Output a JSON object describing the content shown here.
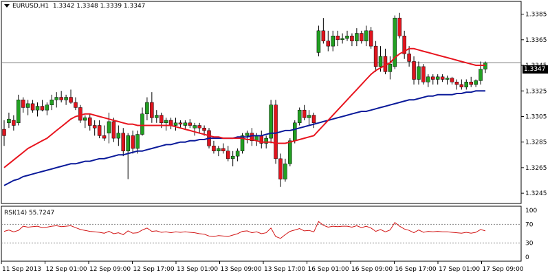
{
  "header": {
    "symbol_label": "EURUSD,H1",
    "ohlc": "1.3342 1.3348 1.3339 1.3347"
  },
  "current_price": "1.3347",
  "rsi": {
    "label": "RSI(14) 55.7247",
    "levels": [
      "100",
      "70",
      "30",
      "0"
    ]
  },
  "colors": {
    "bull": "#22a022",
    "bear": "#e0141e",
    "ma_fast": "#e8141e",
    "ma_slow": "#0a1a9a",
    "rsi_line": "#d21414",
    "grid": "#000000"
  },
  "chart_data": {
    "type": "candlestick",
    "price_axis": {
      "ticks": [
        "1.3385",
        "1.3365",
        "1.3345",
        "1.3325",
        "1.3305",
        "1.3285",
        "1.3265",
        "1.3245"
      ],
      "range": [
        1.3237,
        1.3395
      ]
    },
    "time_axis": {
      "ticks": [
        "11 Sep 2013",
        "12 Sep 01:00",
        "12 Sep 09:00",
        "12 Sep 17:00",
        "13 Sep 01:00",
        "13 Sep 09:00",
        "13 Sep 17:00",
        "16 Sep 01:00",
        "16 Sep 09:00",
        "16 Sep 17:00",
        "17 Sep 01:00",
        "17 Sep 09:00"
      ]
    },
    "candles": [
      [
        1.3295,
        1.3302,
        1.3282,
        1.329
      ],
      [
        1.33,
        1.3308,
        1.3296,
        1.3303
      ],
      [
        1.3302,
        1.3306,
        1.3294,
        1.3298
      ],
      [
        1.33,
        1.3322,
        1.3298,
        1.3318
      ],
      [
        1.3318,
        1.332,
        1.3308,
        1.3312
      ],
      [
        1.3312,
        1.3318,
        1.3306,
        1.3315
      ],
      [
        1.3315,
        1.3318,
        1.3308,
        1.331
      ],
      [
        1.331,
        1.3316,
        1.3305,
        1.3313
      ],
      [
        1.3313,
        1.3318,
        1.3309,
        1.331
      ],
      [
        1.331,
        1.3316,
        1.3306,
        1.3314
      ],
      [
        1.3314,
        1.3322,
        1.331,
        1.3318
      ],
      [
        1.3318,
        1.3324,
        1.3312,
        1.332
      ],
      [
        1.332,
        1.3325,
        1.3316,
        1.3318
      ],
      [
        1.3318,
        1.3322,
        1.3314,
        1.332
      ],
      [
        1.332,
        1.3326,
        1.3315,
        1.3316
      ],
      [
        1.3316,
        1.332,
        1.331,
        1.3312
      ],
      [
        1.3312,
        1.3314,
        1.33,
        1.3302
      ],
      [
        1.3302,
        1.3306,
        1.3296,
        1.3304
      ],
      [
        1.3304,
        1.3307,
        1.3294,
        1.3298
      ],
      [
        1.3298,
        1.3302,
        1.329,
        1.3296
      ],
      [
        1.3298,
        1.3302,
        1.3288,
        1.329
      ],
      [
        1.329,
        1.3298,
        1.3286,
        1.3288
      ],
      [
        1.3292,
        1.3308,
        1.3284,
        1.3301
      ],
      [
        1.3301,
        1.3304,
        1.3285,
        1.3288
      ],
      [
        1.3288,
        1.3298,
        1.3282,
        1.3292
      ],
      [
        1.3292,
        1.3296,
        1.3274,
        1.3278
      ],
      [
        1.3278,
        1.3292,
        1.3256,
        1.329
      ],
      [
        1.329,
        1.3294,
        1.3276,
        1.328
      ],
      [
        1.328,
        1.3294,
        1.3276,
        1.3291
      ],
      [
        1.3291,
        1.3312,
        1.329,
        1.3307
      ],
      [
        1.3307,
        1.332,
        1.3302,
        1.3316
      ],
      [
        1.3316,
        1.3324,
        1.33,
        1.3304
      ],
      [
        1.3304,
        1.331,
        1.33,
        1.3306
      ],
      [
        1.3306,
        1.3308,
        1.3296,
        1.33
      ],
      [
        1.33,
        1.3304,
        1.3294,
        1.3302
      ],
      [
        1.3302,
        1.3304,
        1.3295,
        1.3298
      ],
      [
        1.3298,
        1.3304,
        1.3294,
        1.33
      ],
      [
        1.33,
        1.3302,
        1.3296,
        1.3299
      ],
      [
        1.3298,
        1.3302,
        1.3295,
        1.33
      ],
      [
        1.33,
        1.3303,
        1.3296,
        1.3298
      ],
      [
        1.3296,
        1.33,
        1.329,
        1.3298
      ],
      [
        1.3298,
        1.33,
        1.3292,
        1.3296
      ],
      [
        1.3296,
        1.3298,
        1.329,
        1.3294
      ],
      [
        1.3294,
        1.3296,
        1.328,
        1.3282
      ],
      [
        1.3282,
        1.3286,
        1.3276,
        1.3278
      ],
      [
        1.3278,
        1.3282,
        1.3274,
        1.328
      ],
      [
        1.328,
        1.3284,
        1.3276,
        1.3278
      ],
      [
        1.3278,
        1.3282,
        1.327,
        1.3272
      ],
      [
        1.3272,
        1.3278,
        1.3266,
        1.3274
      ],
      [
        1.3274,
        1.328,
        1.327,
        1.3278
      ],
      [
        1.3278,
        1.3292,
        1.3276,
        1.329
      ],
      [
        1.329,
        1.3294,
        1.3284,
        1.3292
      ],
      [
        1.3292,
        1.3296,
        1.3282,
        1.3286
      ],
      [
        1.3286,
        1.3292,
        1.3282,
        1.329
      ],
      [
        1.329,
        1.3294,
        1.328,
        1.3284
      ],
      [
        1.3284,
        1.329,
        1.328,
        1.3288
      ],
      [
        1.3288,
        1.3318,
        1.3284,
        1.3314
      ],
      [
        1.3314,
        1.3318,
        1.3268,
        1.3272
      ],
      [
        1.3272,
        1.3276,
        1.325,
        1.3256
      ],
      [
        1.3256,
        1.3272,
        1.3254,
        1.3268
      ],
      [
        1.3268,
        1.3288,
        1.3266,
        1.3286
      ],
      [
        1.3286,
        1.3302,
        1.3284,
        1.33
      ],
      [
        1.33,
        1.3312,
        1.3298,
        1.331
      ],
      [
        1.331,
        1.3314,
        1.3302,
        1.3304
      ],
      [
        1.3304,
        1.331,
        1.3298,
        1.3306
      ],
      [
        1.3306,
        1.3308,
        1.3296,
        1.33
      ],
      [
        1.3355,
        1.3376,
        1.3352,
        1.3372
      ],
      [
        1.3372,
        1.3382,
        1.3362,
        1.3364
      ],
      [
        1.3364,
        1.3372,
        1.3356,
        1.336
      ],
      [
        1.336,
        1.3372,
        1.3356,
        1.3368
      ],
      [
        1.3368,
        1.3372,
        1.336,
        1.3365
      ],
      [
        1.3365,
        1.337,
        1.3362,
        1.3366
      ],
      [
        1.3366,
        1.3372,
        1.3364,
        1.3368
      ],
      [
        1.3368,
        1.337,
        1.336,
        1.3364
      ],
      [
        1.3364,
        1.3374,
        1.336,
        1.337
      ],
      [
        1.337,
        1.3372,
        1.3362,
        1.3364
      ],
      [
        1.3364,
        1.3376,
        1.336,
        1.3372
      ],
      [
        1.3372,
        1.3375,
        1.3358,
        1.336
      ],
      [
        1.336,
        1.3364,
        1.334,
        1.3344
      ],
      [
        1.3344,
        1.336,
        1.334,
        1.3352
      ],
      [
        1.3352,
        1.3358,
        1.3338,
        1.334
      ],
      [
        1.334,
        1.3352,
        1.3334,
        1.3346
      ],
      [
        1.3344,
        1.3384,
        1.3342,
        1.3382
      ],
      [
        1.3382,
        1.3386,
        1.3366,
        1.3368
      ],
      [
        1.3368,
        1.3372,
        1.335,
        1.3354
      ],
      [
        1.3354,
        1.336,
        1.3344,
        1.3348
      ],
      [
        1.3348,
        1.3352,
        1.333,
        1.3334
      ],
      [
        1.3334,
        1.3348,
        1.333,
        1.3344
      ],
      [
        1.3344,
        1.3346,
        1.333,
        1.3332
      ],
      [
        1.3332,
        1.3338,
        1.3328,
        1.3336
      ],
      [
        1.3336,
        1.3338,
        1.333,
        1.3334
      ],
      [
        1.3334,
        1.3338,
        1.333,
        1.3336
      ],
      [
        1.3336,
        1.3338,
        1.3332,
        1.3334
      ],
      [
        1.3334,
        1.3337,
        1.333,
        1.3335
      ],
      [
        1.3335,
        1.3336,
        1.333,
        1.3332
      ],
      [
        1.3332,
        1.3334,
        1.3326,
        1.333
      ],
      [
        1.333,
        1.3334,
        1.3326,
        1.3328
      ],
      [
        1.3328,
        1.3334,
        1.3326,
        1.3332
      ],
      [
        1.3332,
        1.3336,
        1.3328,
        1.333
      ],
      [
        1.333,
        1.3334,
        1.3328,
        1.3333
      ],
      [
        1.3333,
        1.3348,
        1.333,
        1.3342
      ],
      [
        1.3342,
        1.3348,
        1.3339,
        1.3347
      ]
    ],
    "ma_fast": [
      1.3265,
      1.3268,
      1.3271,
      1.3274,
      1.3277,
      1.328,
      1.3282,
      1.3284,
      1.3286,
      1.3288,
      1.3291,
      1.3294,
      1.3297,
      1.33,
      1.3303,
      1.3305,
      1.3306,
      1.3307,
      1.3307,
      1.3306,
      1.3305,
      1.3304,
      1.3303,
      1.3302,
      1.3301,
      1.33,
      1.3299,
      1.3299,
      1.3298,
      1.3298,
      1.3298,
      1.3298,
      1.3298,
      1.3298,
      1.3298,
      1.3298,
      1.3297,
      1.3296,
      1.3295,
      1.3294,
      1.3293,
      1.3292,
      1.3291,
      1.329,
      1.3289,
      1.3289,
      1.3288,
      1.3288,
      1.3288,
      1.3288,
      1.3288,
      1.3287,
      1.3287,
      1.3286,
      1.3285,
      1.3285,
      1.3285,
      1.3284,
      1.3284,
      1.3284,
      1.3285,
      1.3286,
      1.3287,
      1.3288,
      1.3289,
      1.329,
      1.3294,
      1.3298,
      1.3302,
      1.3306,
      1.331,
      1.3314,
      1.3318,
      1.3322,
      1.3326,
      1.333,
      1.3334,
      1.3338,
      1.3341,
      1.3343,
      1.3345,
      1.3347,
      1.3351,
      1.3354,
      1.3356,
      1.3358,
      1.3358,
      1.3357,
      1.3356,
      1.3355,
      1.3354,
      1.3353,
      1.3352,
      1.3351,
      1.335,
      1.3349,
      1.3348,
      1.3347,
      1.3346,
      1.3345,
      1.3345,
      1.3345
    ],
    "ma_slow": [
      1.3251,
      1.3253,
      1.3255,
      1.3256,
      1.3258,
      1.3259,
      1.326,
      1.3261,
      1.3262,
      1.3263,
      1.3264,
      1.3265,
      1.3266,
      1.3267,
      1.3268,
      1.3268,
      1.3269,
      1.327,
      1.327,
      1.3271,
      1.3272,
      1.3272,
      1.3273,
      1.3274,
      1.3275,
      1.3275,
      1.3276,
      1.3277,
      1.3278,
      1.3278,
      1.3279,
      1.328,
      1.3281,
      1.3282,
      1.3283,
      1.3283,
      1.3284,
      1.3285,
      1.3285,
      1.3286,
      1.3286,
      1.3287,
      1.3287,
      1.3288,
      1.3288,
      1.3288,
      1.3288,
      1.3288,
      1.3288,
      1.3289,
      1.3289,
      1.3289,
      1.329,
      1.329,
      1.329,
      1.3291,
      1.3292,
      1.3292,
      1.3293,
      1.3294,
      1.3294,
      1.3295,
      1.3296,
      1.3297,
      1.3298,
      1.3299,
      1.33,
      1.3301,
      1.3302,
      1.3303,
      1.3304,
      1.3305,
      1.3306,
      1.3307,
      1.3308,
      1.3309,
      1.3309,
      1.331,
      1.3311,
      1.3312,
      1.3313,
      1.3314,
      1.3315,
      1.3316,
      1.3317,
      1.3318,
      1.3318,
      1.3319,
      1.332,
      1.3321,
      1.3321,
      1.3322,
      1.3322,
      1.3322,
      1.3322,
      1.3323,
      1.3323,
      1.3324,
      1.3324,
      1.3325,
      1.3325,
      1.3325
    ],
    "rsi_values": [
      55,
      58,
      54,
      57,
      66,
      64,
      65,
      66,
      63,
      64,
      66,
      67,
      65,
      66,
      67,
      63,
      59,
      57,
      55,
      54,
      53,
      51,
      55,
      50,
      52,
      48,
      56,
      51,
      52,
      58,
      62,
      55,
      56,
      53,
      54,
      52,
      54,
      53,
      54,
      53,
      52,
      50,
      49,
      45,
      44,
      46,
      45,
      44,
      47,
      50,
      55,
      56,
      52,
      54,
      50,
      52,
      62,
      44,
      40,
      48,
      55,
      58,
      61,
      56,
      57,
      54,
      76,
      68,
      64,
      66,
      65,
      66,
      66,
      64,
      67,
      63,
      66,
      62,
      55,
      59,
      54,
      58,
      74,
      66,
      60,
      57,
      52,
      58,
      53,
      55,
      54,
      55,
      54,
      54,
      53,
      52,
      51,
      53,
      51,
      53,
      59,
      56
    ]
  }
}
